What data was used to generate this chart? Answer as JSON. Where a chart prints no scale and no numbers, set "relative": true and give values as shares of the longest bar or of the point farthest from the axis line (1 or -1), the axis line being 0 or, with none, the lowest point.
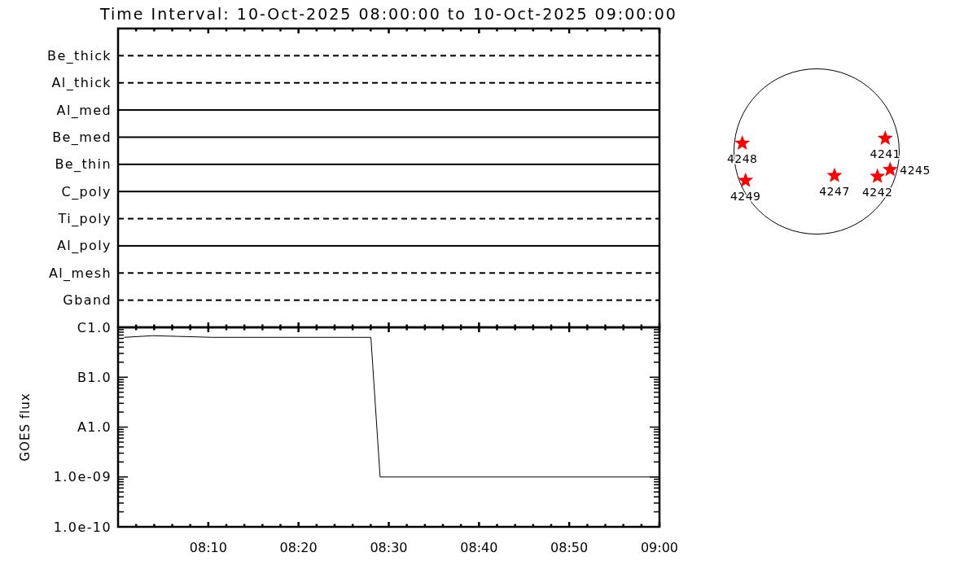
{
  "chart_data": [
    {
      "type": "bar",
      "orientation": "horizontal",
      "stacked": true,
      "relative": true,
      "title": "Time Interval: 10-Oct-2025 08:00:00 to 10-Oct-2025 09:00:00",
      "categories": [
        "Be_thick",
        "Al_thick",
        "Al_med",
        "Be_med",
        "Be_thin",
        "C_poly",
        "Ti_poly",
        "Al_poly",
        "Al_mesh",
        "Gband"
      ],
      "series": [
        {
          "color": "#000000",
          "line_style": "solid",
          "values": [
            null,
            null,
            1,
            1,
            1,
            1,
            null,
            1,
            null,
            null
          ]
        },
        {
          "color": "#000000",
          "line_style": "dashed",
          "values": [
            1,
            1,
            null,
            null,
            null,
            null,
            1,
            null,
            1,
            1
          ]
        }
      ]
    },
    {
      "type": "line",
      "ylabel": "GOES flux",
      "log": "y",
      "xlim": [
        8,
        9
      ],
      "xticks": [
        {
          "value": 8.0333,
          "label": null
        },
        {
          "value": 8.0667,
          "label": null
        },
        {
          "value": 8.1,
          "label": null
        },
        {
          "value": 8.1333,
          "label": null
        },
        {
          "value": 8.1667,
          "label": "08:10"
        },
        {
          "value": 8.2,
          "label": null
        },
        {
          "value": 8.2333,
          "label": null
        },
        {
          "value": 8.2667,
          "label": null
        },
        {
          "value": 8.3,
          "label": null
        },
        {
          "value": 8.3333,
          "label": "08:20"
        },
        {
          "value": 8.3667,
          "label": null
        },
        {
          "value": 8.4,
          "label": null
        },
        {
          "value": 8.4333,
          "label": null
        },
        {
          "value": 8.4667,
          "label": null
        },
        {
          "value": 8.5,
          "label": "08:30"
        },
        {
          "value": 8.5333,
          "label": null
        },
        {
          "value": 8.5667,
          "label": null
        },
        {
          "value": 8.6,
          "label": null
        },
        {
          "value": 8.6333,
          "label": null
        },
        {
          "value": 8.6667,
          "label": "08:40"
        },
        {
          "value": 8.7,
          "label": null
        },
        {
          "value": 8.7333,
          "label": null
        },
        {
          "value": 8.7667,
          "label": null
        },
        {
          "value": 8.8,
          "label": null
        },
        {
          "value": 8.8333,
          "label": "08:50"
        },
        {
          "value": 8.8667,
          "label": null
        },
        {
          "value": 8.9,
          "label": null
        },
        {
          "value": 8.9333,
          "label": null
        },
        {
          "value": 8.9667,
          "label": null
        },
        {
          "value": 9,
          "label": "09:00"
        }
      ],
      "ylim": [
        1e-10,
        1e-06
      ],
      "yticks": [
        {
          "value": 1e-10,
          "label": "1.0e-10"
        },
        {
          "value": 2e-10,
          "label": null
        },
        {
          "value": 3e-10,
          "label": null
        },
        {
          "value": 4e-10,
          "label": null
        },
        {
          "value": 5e-10,
          "label": null
        },
        {
          "value": 6e-10,
          "label": null
        },
        {
          "value": 7e-10,
          "label": null
        },
        {
          "value": 8e-10,
          "label": null
        },
        {
          "value": 9e-10,
          "label": null
        },
        {
          "value": 1e-09,
          "label": "1.0e-09"
        },
        {
          "value": 2e-09,
          "label": null
        },
        {
          "value": 3e-09,
          "label": null
        },
        {
          "value": 4e-09,
          "label": null
        },
        {
          "value": 5e-09,
          "label": null
        },
        {
          "value": 6e-09,
          "label": null
        },
        {
          "value": 7e-09,
          "label": null
        },
        {
          "value": 8e-09,
          "label": null
        },
        {
          "value": 9e-09,
          "label": null
        },
        {
          "value": 1e-08,
          "label": "A1.0"
        },
        {
          "value": 2e-08,
          "label": null
        },
        {
          "value": 3e-08,
          "label": null
        },
        {
          "value": 4e-08,
          "label": null
        },
        {
          "value": 5e-08,
          "label": null
        },
        {
          "value": 6e-08,
          "label": null
        },
        {
          "value": 7e-08,
          "label": null
        },
        {
          "value": 8e-08,
          "label": null
        },
        {
          "value": 9e-08,
          "label": null
        },
        {
          "value": 1e-07,
          "label": "B1.0"
        },
        {
          "value": 2e-07,
          "label": null
        },
        {
          "value": 3e-07,
          "label": null
        },
        {
          "value": 4e-07,
          "label": null
        },
        {
          "value": 5e-07,
          "label": null
        },
        {
          "value": 6e-07,
          "label": null
        },
        {
          "value": 7e-07,
          "label": null
        },
        {
          "value": 8e-07,
          "label": null
        },
        {
          "value": 9e-07,
          "label": null
        },
        {
          "value": 1e-06,
          "label": "C1.0"
        }
      ],
      "series": [
        {
          "color": "#000000",
          "x": [
            8.011,
            8.064,
            8.109,
            8.174,
            8.467,
            8.484,
            9
          ],
          "values": [
            6.3e-07,
            6.8e-07,
            6.6e-07,
            6.3e-07,
            6.3e-07,
            1e-09,
            1e-09
          ]
        }
      ]
    },
    {
      "type": "other",
      "annotations": [
        "4241",
        "4242",
        "4245",
        "4247",
        "4248",
        "4249"
      ]
    }
  ]
}
